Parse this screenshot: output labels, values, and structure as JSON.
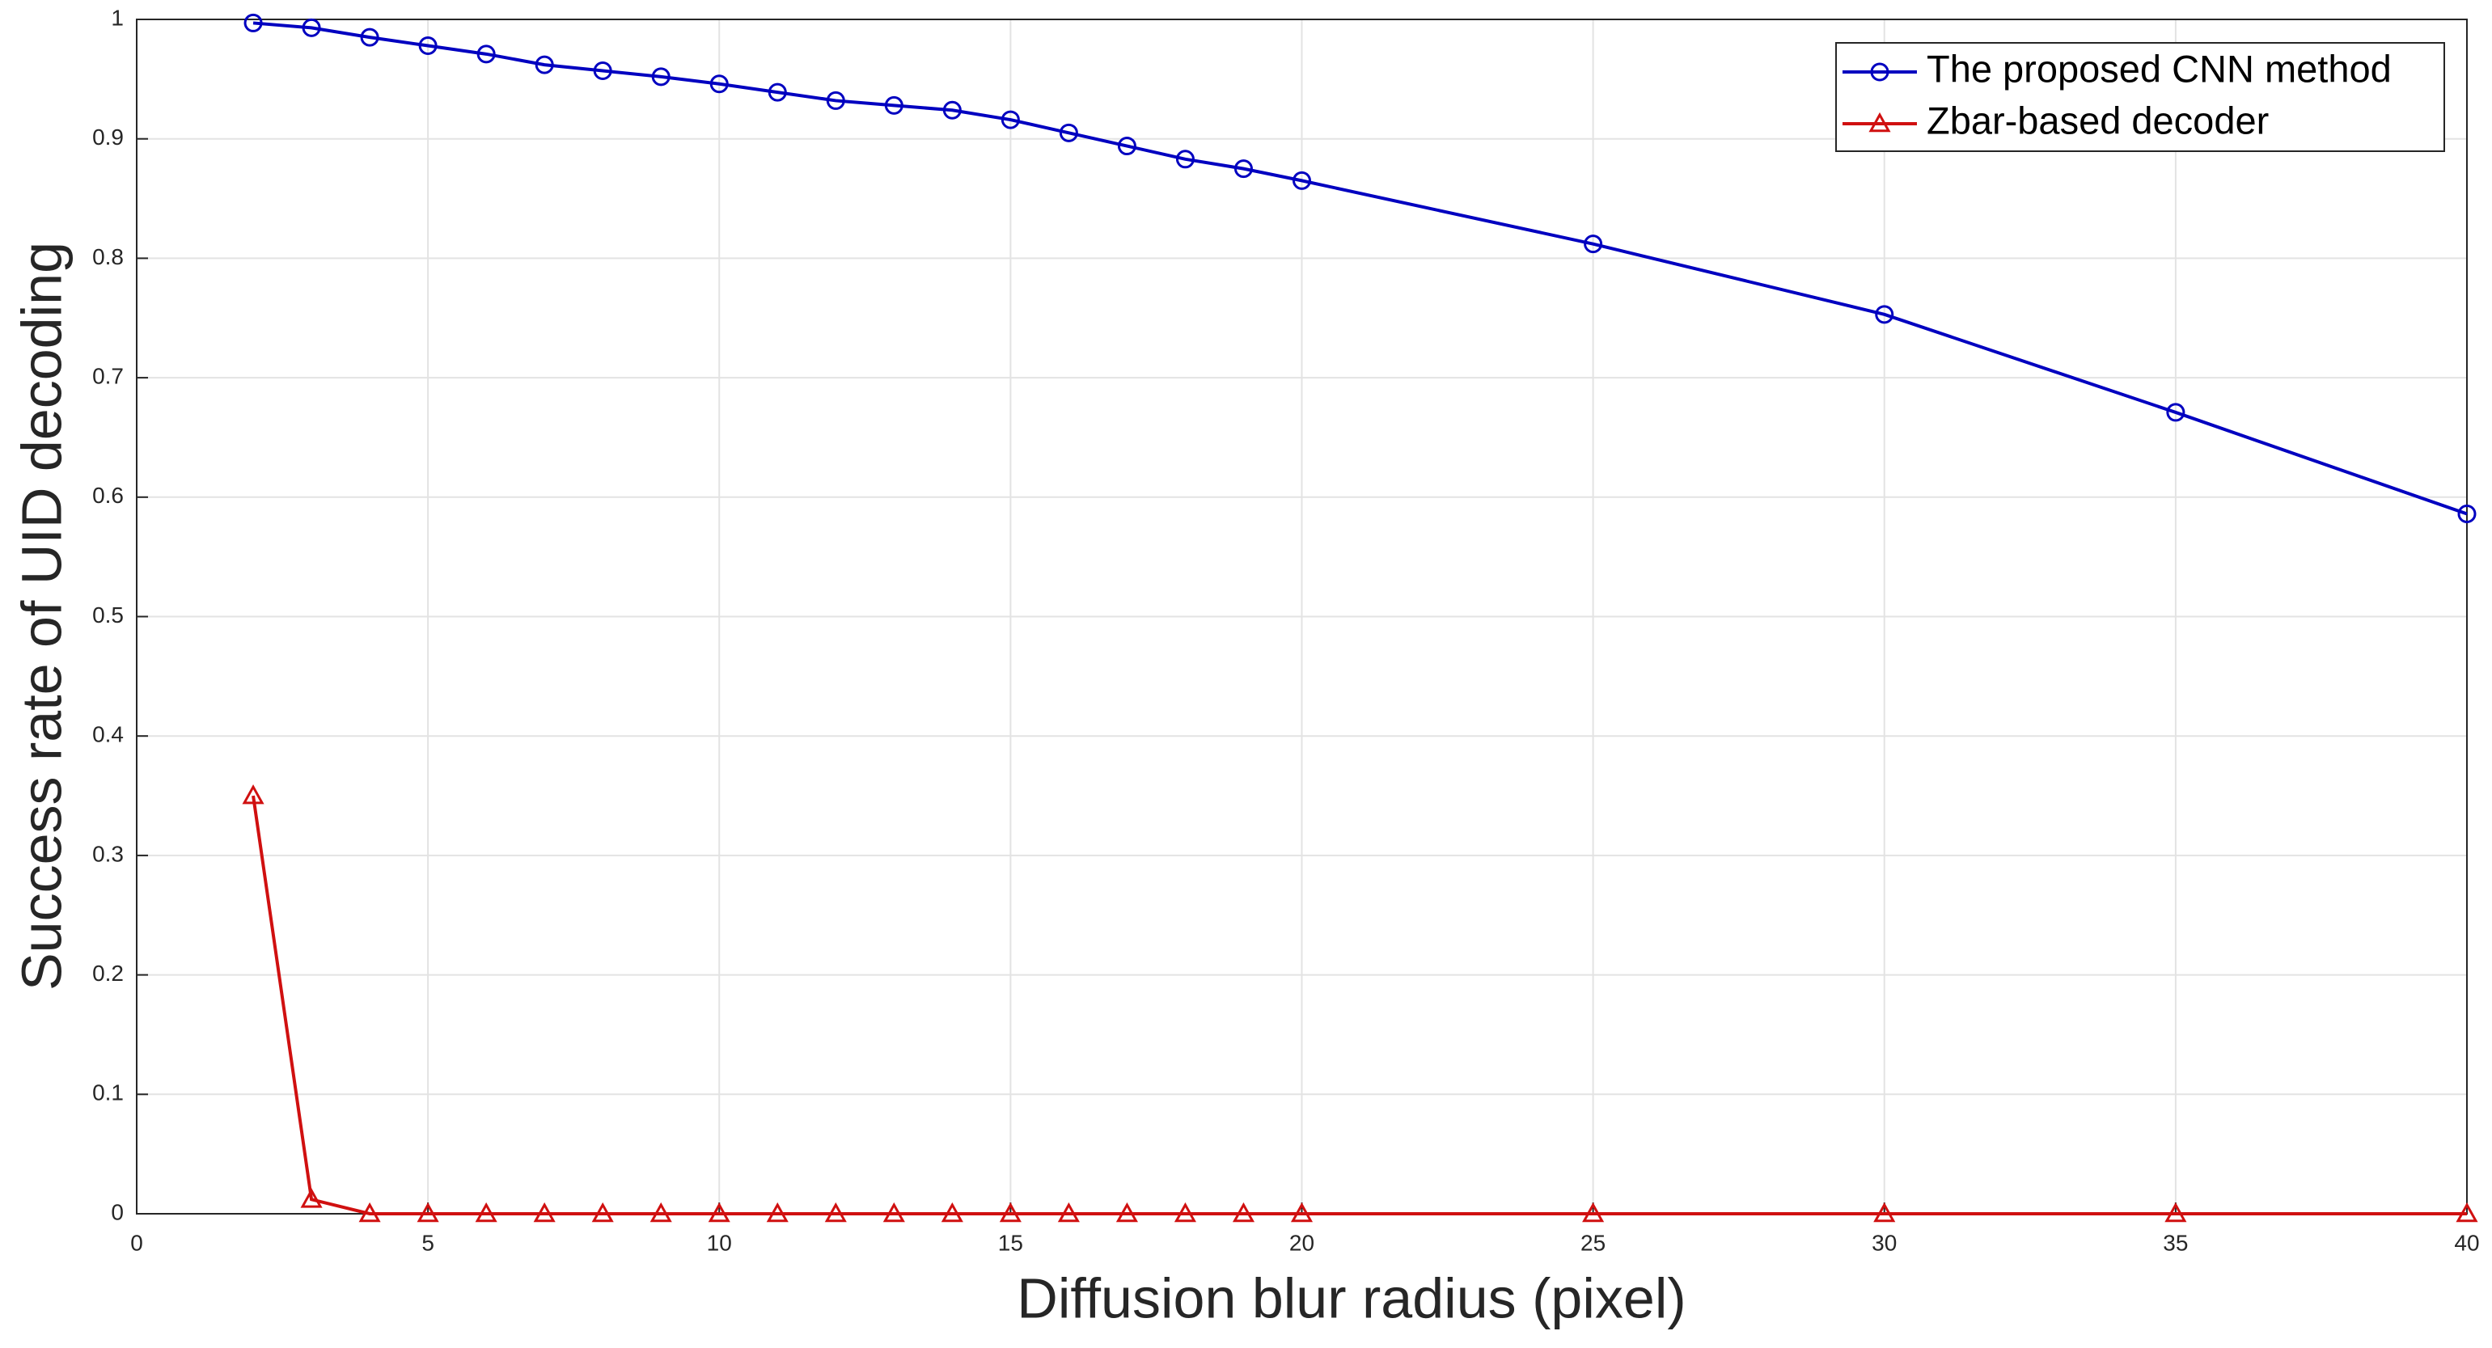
{
  "chart_data": {
    "type": "line",
    "xlabel": "Diffusion blur radius (pixel)",
    "ylabel": "Success rate of UID decoding",
    "x": [
      2,
      3,
      4,
      5,
      6,
      7,
      8,
      9,
      10,
      11,
      12,
      13,
      14,
      15,
      16,
      17,
      18,
      19,
      20,
      25,
      30,
      35,
      40
    ],
    "series": [
      {
        "name": "The proposed CNN method",
        "color": "#0000c0",
        "marker": "circle",
        "values": [
          0.997,
          0.993,
          0.985,
          0.978,
          0.971,
          0.962,
          0.957,
          0.952,
          0.946,
          0.939,
          0.932,
          0.928,
          0.924,
          0.916,
          0.905,
          0.894,
          0.883,
          0.875,
          0.865,
          0.812,
          0.753,
          0.671,
          0.586
        ]
      },
      {
        "name": "Zbar-based decoder",
        "color": "#d01010",
        "marker": "triangle",
        "values": [
          0.35,
          0.012,
          0,
          0,
          0,
          0,
          0,
          0,
          0,
          0,
          0,
          0,
          0,
          0,
          0,
          0,
          0,
          0,
          0,
          0,
          0,
          0,
          0
        ]
      }
    ],
    "xlim": [
      0,
      40
    ],
    "xticks": [
      0,
      5,
      10,
      15,
      20,
      25,
      30,
      35,
      40
    ],
    "ylim": [
      0,
      1
    ],
    "yticks": [
      0,
      0.1,
      0.2,
      0.3,
      0.4,
      0.5,
      0.6,
      0.7,
      0.8,
      0.9,
      1
    ],
    "grid": true,
    "legend": "northeast"
  }
}
